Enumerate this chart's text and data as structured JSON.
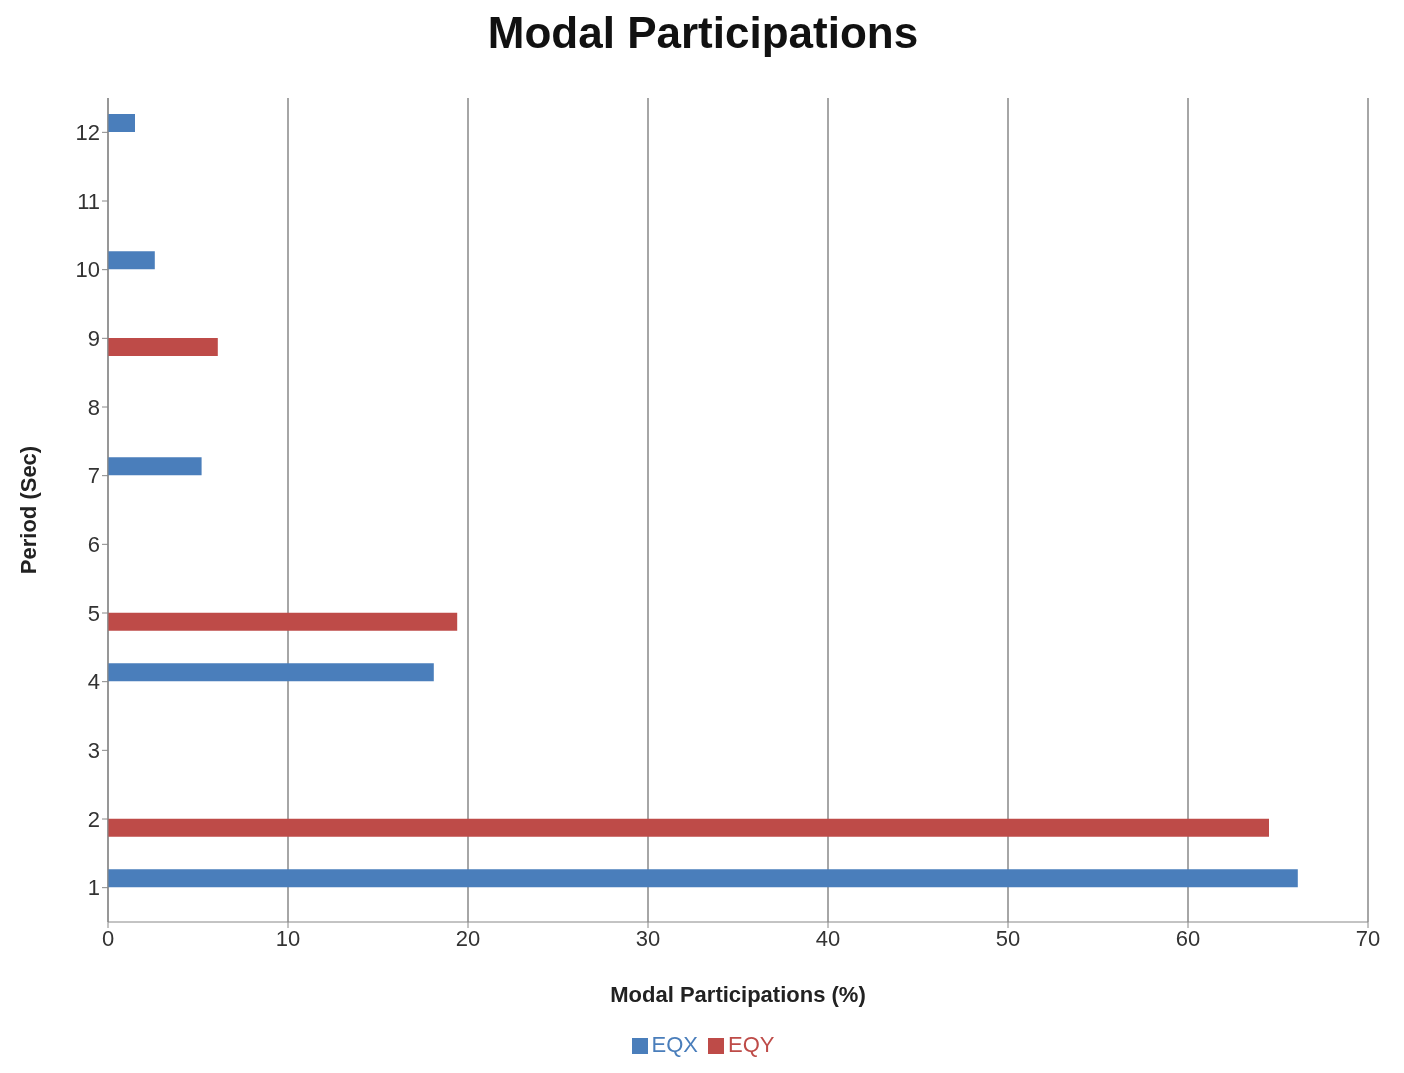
{
  "chart_data": {
    "type": "bar",
    "orientation": "horizontal",
    "title": "Modal Participations",
    "xlabel": "Modal Participations (%)",
    "ylabel": "Period (Sec)",
    "categories": [
      "12",
      "11",
      "10",
      "9",
      "8",
      "7",
      "6",
      "5",
      "4",
      "3",
      "2",
      "1"
    ],
    "series": [
      {
        "name": "EQX",
        "color": "#4a7ebb",
        "values": [
          1.5,
          null,
          2.6,
          null,
          null,
          5.2,
          null,
          null,
          18.1,
          null,
          null,
          66.1
        ]
      },
      {
        "name": "EQY",
        "color": "#be4b48",
        "values": [
          null,
          null,
          null,
          6.1,
          null,
          null,
          null,
          19.4,
          null,
          null,
          64.5,
          null
        ]
      }
    ],
    "xlim": [
      0,
      70
    ],
    "xticks": [
      0,
      10,
      20,
      30,
      40,
      50,
      60,
      70
    ],
    "grid": "x",
    "legend": "bottom"
  }
}
